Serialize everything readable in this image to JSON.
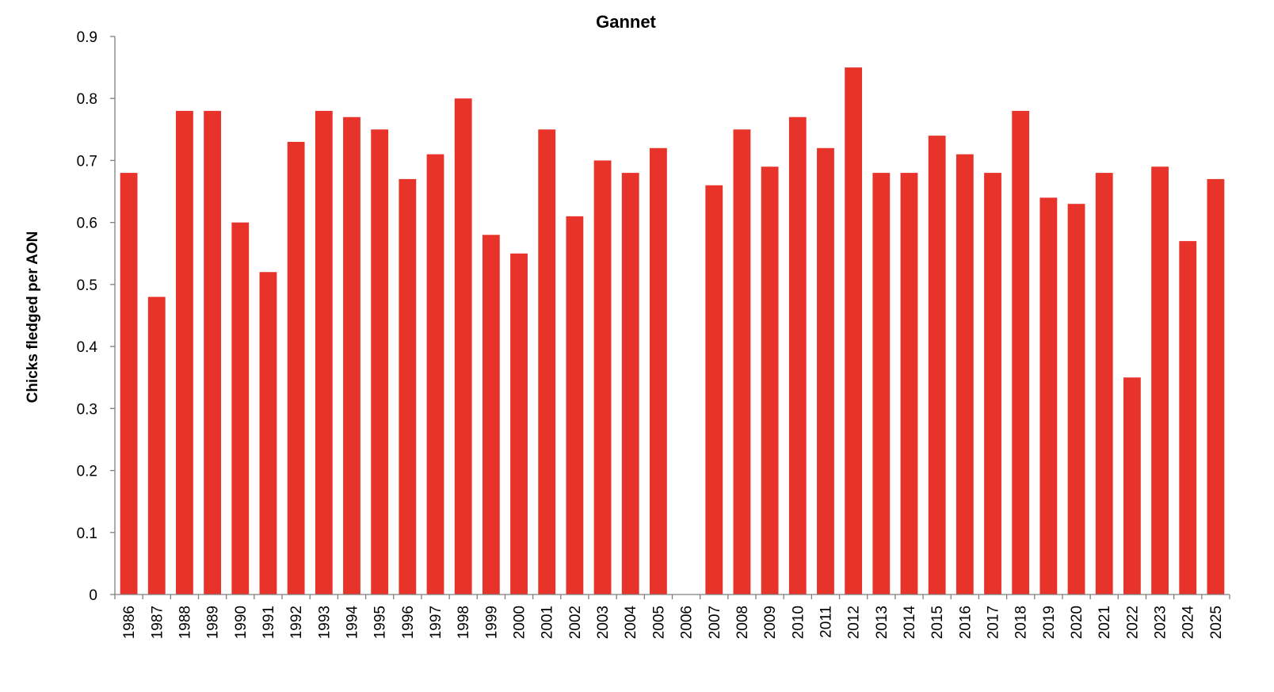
{
  "chart_data": {
    "type": "bar",
    "title": "Gannet",
    "xlabel": "",
    "ylabel": "Chicks fledged per AON",
    "ylim": [
      0,
      0.9
    ],
    "yticks": [
      "0",
      "0.1",
      "0.2",
      "0.3",
      "0.4",
      "0.5",
      "0.6",
      "0.7",
      "0.8",
      "0.9"
    ],
    "grid": false,
    "legend": "none",
    "bar_color": "#e8332a",
    "categories": [
      "1986",
      "1987",
      "1988",
      "1989",
      "1990",
      "1991",
      "1992",
      "1993",
      "1994",
      "1995",
      "1996",
      "1997",
      "1998",
      "1999",
      "2000",
      "2001",
      "2002",
      "2003",
      "2004",
      "2005",
      "2006",
      "2007",
      "2008",
      "2009",
      "2010",
      "2011",
      "2012",
      "2013",
      "2014",
      "2015",
      "2016",
      "2017",
      "2018",
      "2019",
      "2020",
      "2021",
      "2022",
      "2023",
      "2024",
      "2025"
    ],
    "values": [
      0.68,
      0.48,
      0.78,
      0.78,
      0.6,
      0.52,
      0.73,
      0.78,
      0.77,
      0.75,
      0.67,
      0.71,
      0.8,
      0.58,
      0.55,
      0.75,
      0.61,
      0.7,
      0.68,
      0.72,
      null,
      0.66,
      0.75,
      0.69,
      0.77,
      0.72,
      0.85,
      0.68,
      0.68,
      0.74,
      0.71,
      0.68,
      0.78,
      0.64,
      0.63,
      0.68,
      0.35,
      0.69,
      0.57,
      0.67
    ]
  }
}
